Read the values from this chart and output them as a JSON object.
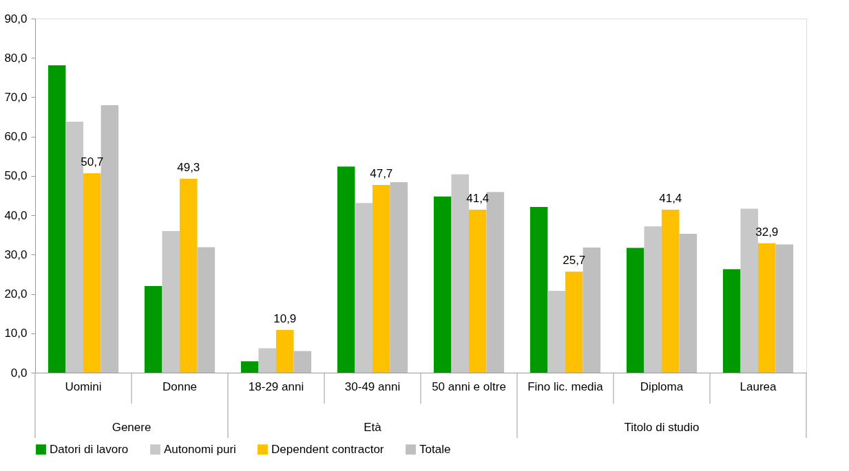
{
  "chart_data": {
    "type": "bar",
    "categories": [
      "Uomini",
      "Donne",
      "18-29 anni",
      "30-49 anni",
      "50 anni e oltre",
      "Fino lic. media",
      "Diploma",
      "Laurea"
    ],
    "series": [
      {
        "name": "Datori di lavoro",
        "color": "#009900",
        "values": [
          78.1,
          22.0,
          2.9,
          52.4,
          44.8,
          42.1,
          31.7,
          26.3
        ]
      },
      {
        "name": "Autonomi puri",
        "color": "#c8c8c8",
        "values": [
          63.8,
          36.0,
          6.2,
          43.1,
          50.4,
          20.8,
          37.2,
          41.7
        ]
      },
      {
        "name": "Dependent contractor",
        "color": "#ffc000",
        "values": [
          50.7,
          49.3,
          10.9,
          47.7,
          41.4,
          25.7,
          41.4,
          32.9
        ],
        "value_labels": [
          "50,7",
          "49,3",
          "10,9",
          "47,7",
          "41,4",
          "25,7",
          "41,4",
          "32,9"
        ]
      },
      {
        "name": "Totale",
        "color": "#bfbfbf",
        "values": [
          68.0,
          31.9,
          5.5,
          48.4,
          45.9,
          31.8,
          35.3,
          32.6
        ]
      }
    ],
    "ylim": [
      0,
      90
    ],
    "yticks": [
      {
        "value": 0,
        "label": "0,0"
      },
      {
        "value": 10,
        "label": "10,0"
      },
      {
        "value": 20,
        "label": "20,0"
      },
      {
        "value": 30,
        "label": "30,0"
      },
      {
        "value": 40,
        "label": "40,0"
      },
      {
        "value": 50,
        "label": "50,0"
      },
      {
        "value": 60,
        "label": "60,0"
      },
      {
        "value": 70,
        "label": "70,0"
      },
      {
        "value": 80,
        "label": "80,0"
      },
      {
        "value": 90,
        "label": "90,0"
      }
    ],
    "annotations": [
      "Genere",
      "Età",
      "Titolo di studio"
    ],
    "grid": false,
    "legend": "bottom"
  }
}
